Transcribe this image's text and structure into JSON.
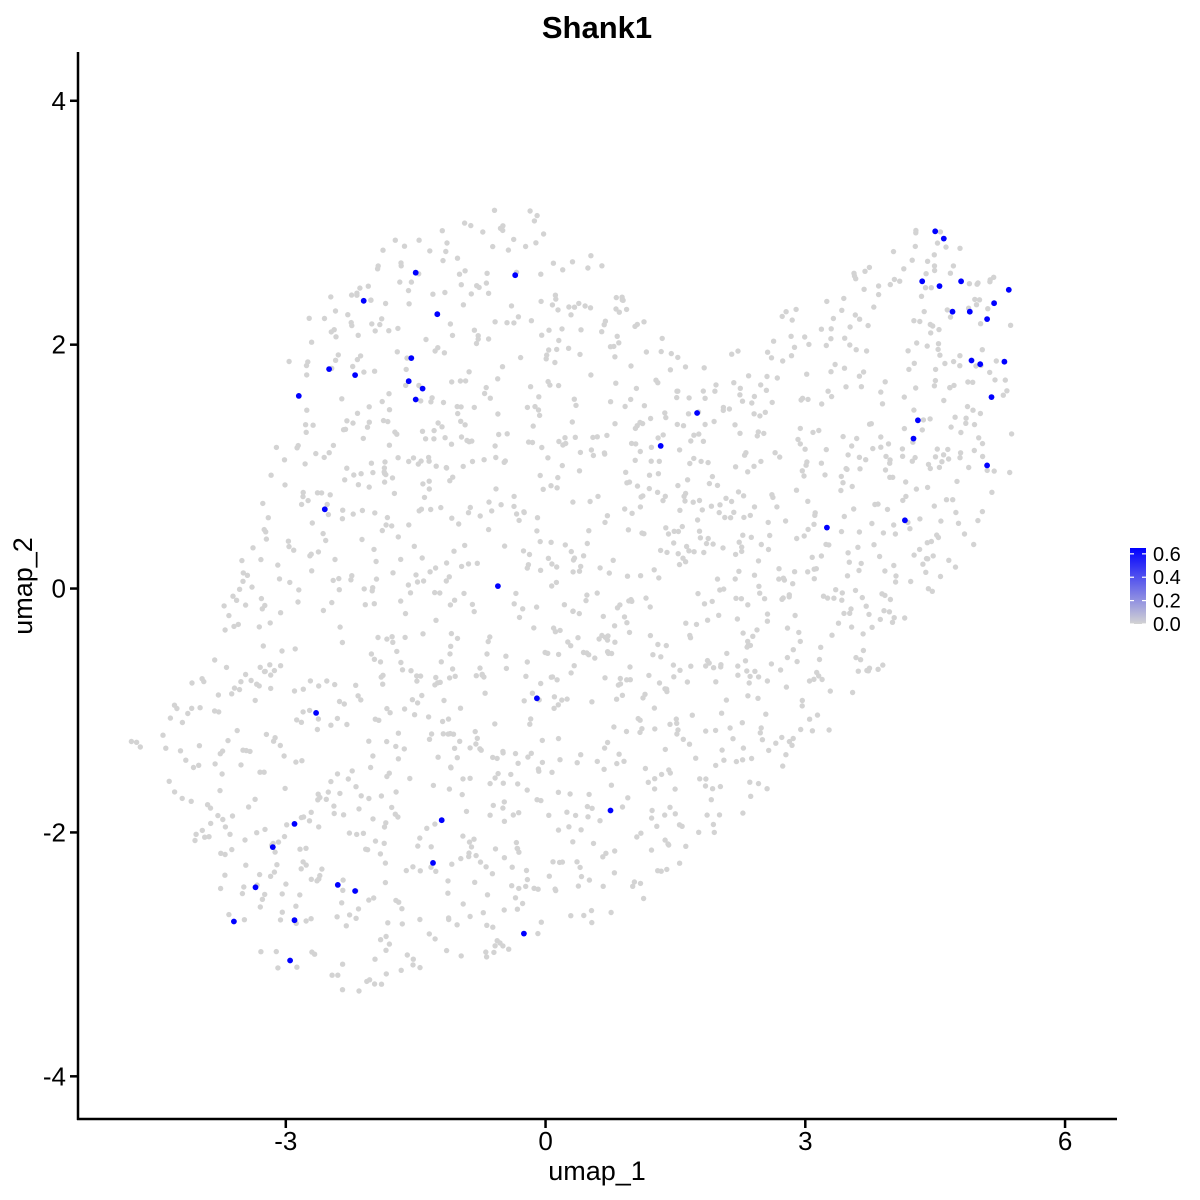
{
  "chart_data": {
    "type": "scatter",
    "title": "Shank1",
    "xlabel": "umap_1",
    "ylabel": "umap_2",
    "xlim": [
      -5.4,
      6.6
    ],
    "ylim": [
      -4.35,
      4.4
    ],
    "x_ticks": [
      -3,
      0,
      3,
      6
    ],
    "x_tick_labels": [
      "-3",
      "0",
      "3",
      "6"
    ],
    "y_ticks": [
      -4,
      -2,
      0,
      2,
      4
    ],
    "y_tick_labels": [
      "-4",
      "-2",
      "0",
      "2",
      "4"
    ],
    "grid": false,
    "legend_position": "right",
    "colors": {
      "low": "#d3d3d3",
      "high": "#0000ff"
    },
    "legend": {
      "ticks": [
        0.0,
        0.2,
        0.4,
        0.6
      ],
      "tick_labels": [
        "0.0",
        "0.2",
        "0.4",
        "0.6"
      ],
      "range": [
        0,
        0.65
      ]
    },
    "background_points_note_free": true,
    "background_point_count": 1700,
    "series": [
      {
        "values_desc": "expressing",
        "points": [
          [
            -3.6,
            -2.73
          ],
          [
            -3.35,
            -2.45
          ],
          [
            -3.15,
            -2.12
          ],
          [
            -2.95,
            -3.05
          ],
          [
            -2.9,
            -2.72
          ],
          [
            -2.9,
            -1.93
          ],
          [
            -2.65,
            -1.02
          ],
          [
            -2.55,
            0.65
          ],
          [
            -2.5,
            1.8
          ],
          [
            -2.4,
            -2.43
          ],
          [
            -2.2,
            -2.48
          ],
          [
            -2.2,
            1.75
          ],
          [
            -2.1,
            2.36
          ],
          [
            -2.85,
            1.58
          ],
          [
            -1.55,
            1.89
          ],
          [
            -1.58,
            1.7
          ],
          [
            -1.5,
            1.55
          ],
          [
            -1.42,
            1.64
          ],
          [
            -1.5,
            2.59
          ],
          [
            -1.25,
            2.25
          ],
          [
            -1.3,
            -2.25
          ],
          [
            -1.2,
            -1.9
          ],
          [
            -0.55,
            0.02
          ],
          [
            -0.35,
            2.57
          ],
          [
            -0.25,
            -2.83
          ],
          [
            -0.1,
            -0.9
          ],
          [
            0.75,
            -1.82
          ],
          [
            1.33,
            1.17
          ],
          [
            1.75,
            1.44
          ],
          [
            3.25,
            0.5
          ],
          [
            4.15,
            0.56
          ],
          [
            4.25,
            1.23
          ],
          [
            4.3,
            1.38
          ],
          [
            4.35,
            2.52
          ],
          [
            4.5,
            2.93
          ],
          [
            4.55,
            2.48
          ],
          [
            4.6,
            2.87
          ],
          [
            4.7,
            2.27
          ],
          [
            4.8,
            2.52
          ],
          [
            4.9,
            2.27
          ],
          [
            4.92,
            1.87
          ],
          [
            5.02,
            1.84
          ],
          [
            5.1,
            2.21
          ],
          [
            5.1,
            1.01
          ],
          [
            5.15,
            1.57
          ],
          [
            5.18,
            2.34
          ],
          [
            5.3,
            1.86
          ],
          [
            5.35,
            2.45
          ]
        ],
        "expression": [
          0.6,
          0.6,
          0.6,
          0.6,
          0.6,
          0.6,
          0.6,
          0.6,
          0.6,
          0.6,
          0.6,
          0.6,
          0.6,
          0.6,
          0.6,
          0.6,
          0.6,
          0.6,
          0.6,
          0.6,
          0.6,
          0.6,
          0.6,
          0.6,
          0.6,
          0.6,
          0.6,
          0.6,
          0.6,
          0.6,
          0.6,
          0.6,
          0.6,
          0.6,
          0.6,
          0.6,
          0.6,
          0.6,
          0.6,
          0.6,
          0.6,
          0.6,
          0.6,
          0.6,
          0.6,
          0.6,
          0.6,
          0.6
        ]
      }
    ]
  }
}
